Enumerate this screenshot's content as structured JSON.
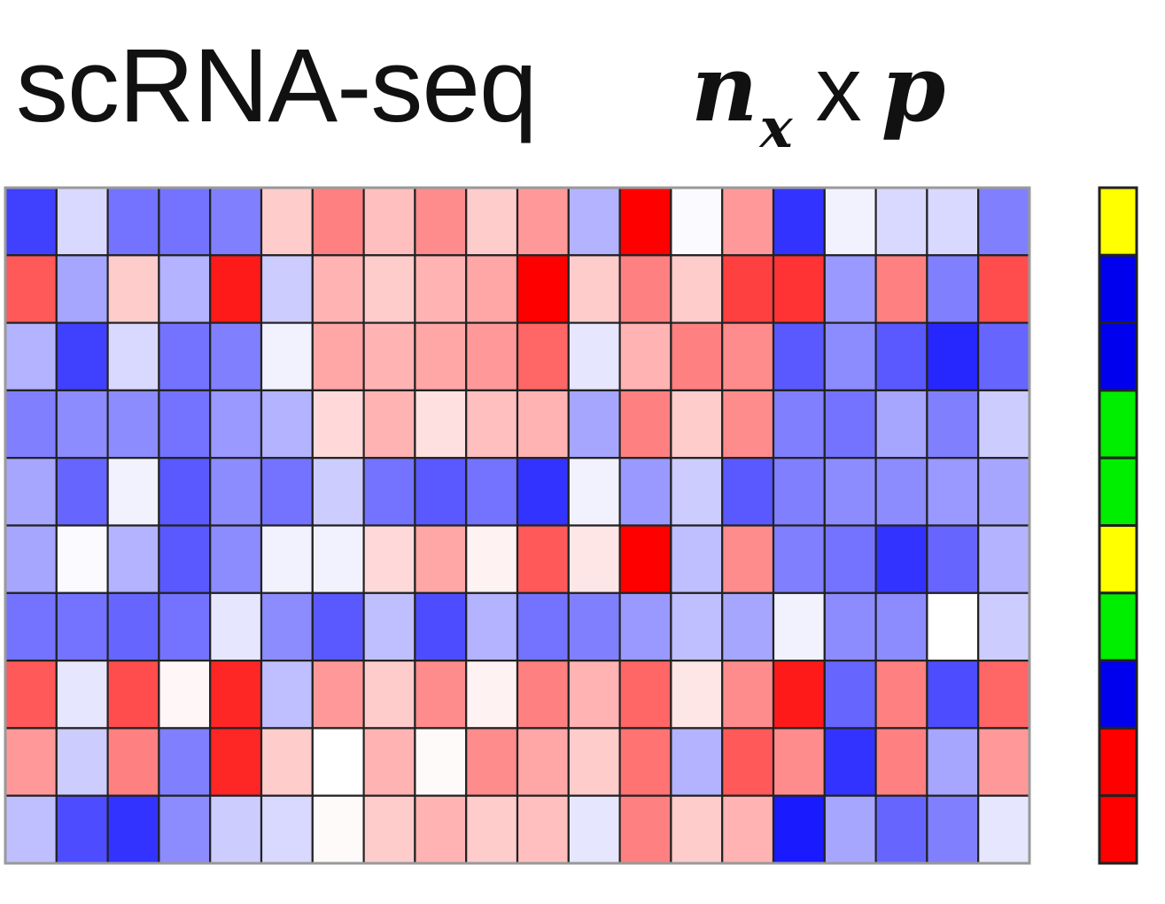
{
  "title": "scRNA-seq",
  "formula": {
    "n": "n",
    "subscript": "x",
    "times": "x",
    "p": "p"
  },
  "colors": {
    "negative": "#0000ff",
    "neutral": "#ffffff",
    "positive": "#ff0000",
    "grid": "#222222"
  },
  "matrix": {
    "rows": 10,
    "cols": 20,
    "values": [
      [
        -0.75,
        -0.15,
        -0.55,
        -0.55,
        -0.5,
        0.2,
        0.5,
        0.25,
        0.45,
        0.2,
        0.4,
        -0.3,
        1.0,
        -0.02,
        0.4,
        -0.8,
        -0.05,
        -0.15,
        -0.15,
        -0.5
      ],
      [
        0.65,
        -0.35,
        0.2,
        -0.3,
        0.9,
        -0.2,
        0.3,
        0.2,
        0.3,
        0.35,
        1.0,
        0.2,
        0.5,
        0.2,
        0.75,
        0.8,
        -0.4,
        0.5,
        -0.5,
        0.7
      ],
      [
        -0.3,
        -0.75,
        -0.15,
        -0.55,
        -0.5,
        -0.05,
        0.35,
        0.3,
        0.35,
        0.4,
        0.6,
        -0.1,
        0.3,
        0.5,
        0.45,
        -0.65,
        -0.45,
        -0.65,
        -0.85,
        -0.6
      ],
      [
        -0.5,
        -0.45,
        -0.45,
        -0.55,
        -0.4,
        -0.3,
        0.15,
        0.3,
        0.12,
        0.25,
        0.3,
        -0.35,
        0.5,
        0.2,
        0.45,
        -0.5,
        -0.55,
        -0.35,
        -0.5,
        -0.2
      ],
      [
        -0.35,
        -0.6,
        -0.05,
        -0.65,
        -0.45,
        -0.55,
        -0.2,
        -0.55,
        -0.65,
        -0.55,
        -0.8,
        -0.05,
        -0.4,
        -0.2,
        -0.65,
        -0.5,
        -0.45,
        -0.45,
        -0.4,
        -0.35
      ],
      [
        -0.35,
        -0.02,
        -0.3,
        -0.65,
        -0.45,
        -0.05,
        -0.05,
        0.15,
        0.35,
        0.05,
        0.65,
        0.1,
        1.0,
        -0.25,
        0.45,
        -0.5,
        -0.55,
        -0.8,
        -0.6,
        -0.3
      ],
      [
        -0.55,
        -0.55,
        -0.6,
        -0.55,
        -0.1,
        -0.45,
        -0.65,
        -0.25,
        -0.7,
        -0.3,
        -0.55,
        -0.5,
        -0.4,
        -0.25,
        -0.35,
        -0.05,
        -0.45,
        -0.45,
        0.0,
        -0.2
      ],
      [
        0.65,
        -0.1,
        0.7,
        0.03,
        0.85,
        -0.25,
        0.4,
        0.2,
        0.45,
        0.05,
        0.5,
        0.3,
        0.6,
        0.1,
        0.45,
        0.9,
        -0.6,
        0.5,
        -0.7,
        0.6
      ],
      [
        0.4,
        -0.2,
        0.5,
        -0.5,
        0.85,
        0.2,
        0.0,
        0.3,
        0.02,
        0.45,
        0.35,
        0.2,
        0.55,
        -0.3,
        0.65,
        0.45,
        -0.8,
        0.5,
        -0.35,
        0.4
      ],
      [
        -0.25,
        -0.7,
        -0.8,
        -0.45,
        -0.2,
        -0.15,
        0.02,
        0.2,
        0.3,
        0.2,
        0.25,
        -0.1,
        0.5,
        0.2,
        0.3,
        -0.9,
        -0.35,
        -0.6,
        -0.5,
        -0.1
      ]
    ]
  },
  "labels": {
    "values": [
      "yellow",
      "blue",
      "blue",
      "green",
      "green",
      "yellow",
      "green",
      "blue",
      "red",
      "red"
    ],
    "palette": {
      "yellow": "#ffff00",
      "blue": "#0000ee",
      "green": "#00ee00",
      "red": "#ff0000"
    }
  }
}
